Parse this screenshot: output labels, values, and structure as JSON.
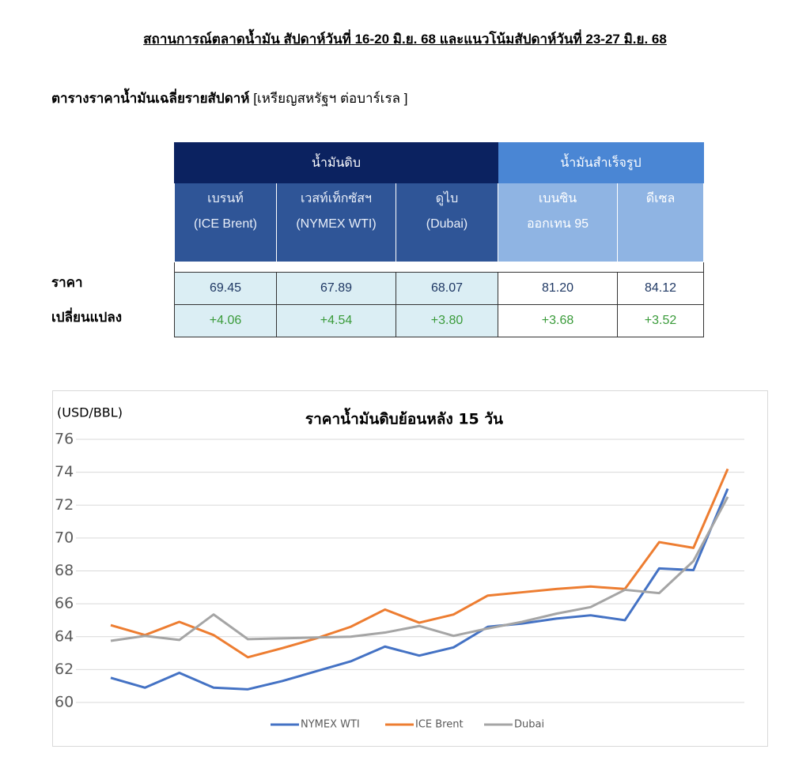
{
  "header": {
    "title": "สถานการณ์ตลาดน้ำมัน สัปดาห์วันที่  16-20 มิ.ย. 68 และแนวโน้มสัปดาห์วันที่ 23-27 มิ.ย. 68",
    "table_title": "ตารางราคาน้ำมันเฉลี่ยรายสัปดาห์",
    "table_unit": "[เหรียญสหรัฐฯ ต่อบาร์เรล ]"
  },
  "table": {
    "groups": [
      "น้ำมันดิบ",
      "น้ำมันสำเร็จรูป"
    ],
    "columns": [
      [
        "เบรนท์",
        "(ICE Brent)"
      ],
      [
        "เวสท์เท็กซัสฯ",
        "(NYMEX WTI)"
      ],
      [
        "ดูไบ",
        "(Dubai)"
      ],
      [
        "เบนซิน",
        "ออกเทน 95"
      ],
      [
        "ดีเซล"
      ]
    ],
    "rows": [
      {
        "label": "ราคา",
        "cells": [
          "69.45",
          "67.89",
          "68.07",
          "81.20",
          "84.12"
        ]
      },
      {
        "label": "เปลี่ยนแปลง",
        "cells": [
          "+4.06",
          "+4.54",
          "+3.80",
          "+3.68",
          "+3.52"
        ]
      }
    ]
  },
  "chart_data": {
    "type": "line",
    "title": "ราคาน้ำมันดิบย้อนหลัง 15 วัน",
    "y_label": "(USD/BBL)",
    "ylim": [
      60,
      76
    ],
    "yticks": [
      60,
      62,
      64,
      66,
      68,
      70,
      72,
      74,
      76
    ],
    "grid": true,
    "legend": "bottom",
    "series": [
      {
        "name": "NYMEX WTI",
        "color": "#4472c4",
        "values": [
          61.5,
          60.9,
          61.8,
          60.9,
          60.8,
          61.3,
          61.9,
          62.5,
          63.4,
          62.85,
          63.35,
          64.6,
          64.8,
          65.1,
          65.3,
          65.0,
          68.15,
          68.05,
          73.0
        ]
      },
      {
        "name": "ICE Brent",
        "color": "#ed7d31",
        "values": [
          64.7,
          64.1,
          64.9,
          64.1,
          62.75,
          63.3,
          63.9,
          64.6,
          65.65,
          64.85,
          65.35,
          66.5,
          66.7,
          66.9,
          67.05,
          66.9,
          69.75,
          69.4,
          74.2
        ]
      },
      {
        "name": "Dubai",
        "color": "#a5a5a5",
        "values": [
          63.75,
          64.05,
          63.8,
          65.35,
          63.85,
          63.9,
          63.95,
          64.0,
          64.25,
          64.65,
          64.05,
          64.5,
          64.9,
          65.4,
          65.8,
          66.85,
          66.65,
          68.6,
          72.5
        ]
      }
    ]
  }
}
